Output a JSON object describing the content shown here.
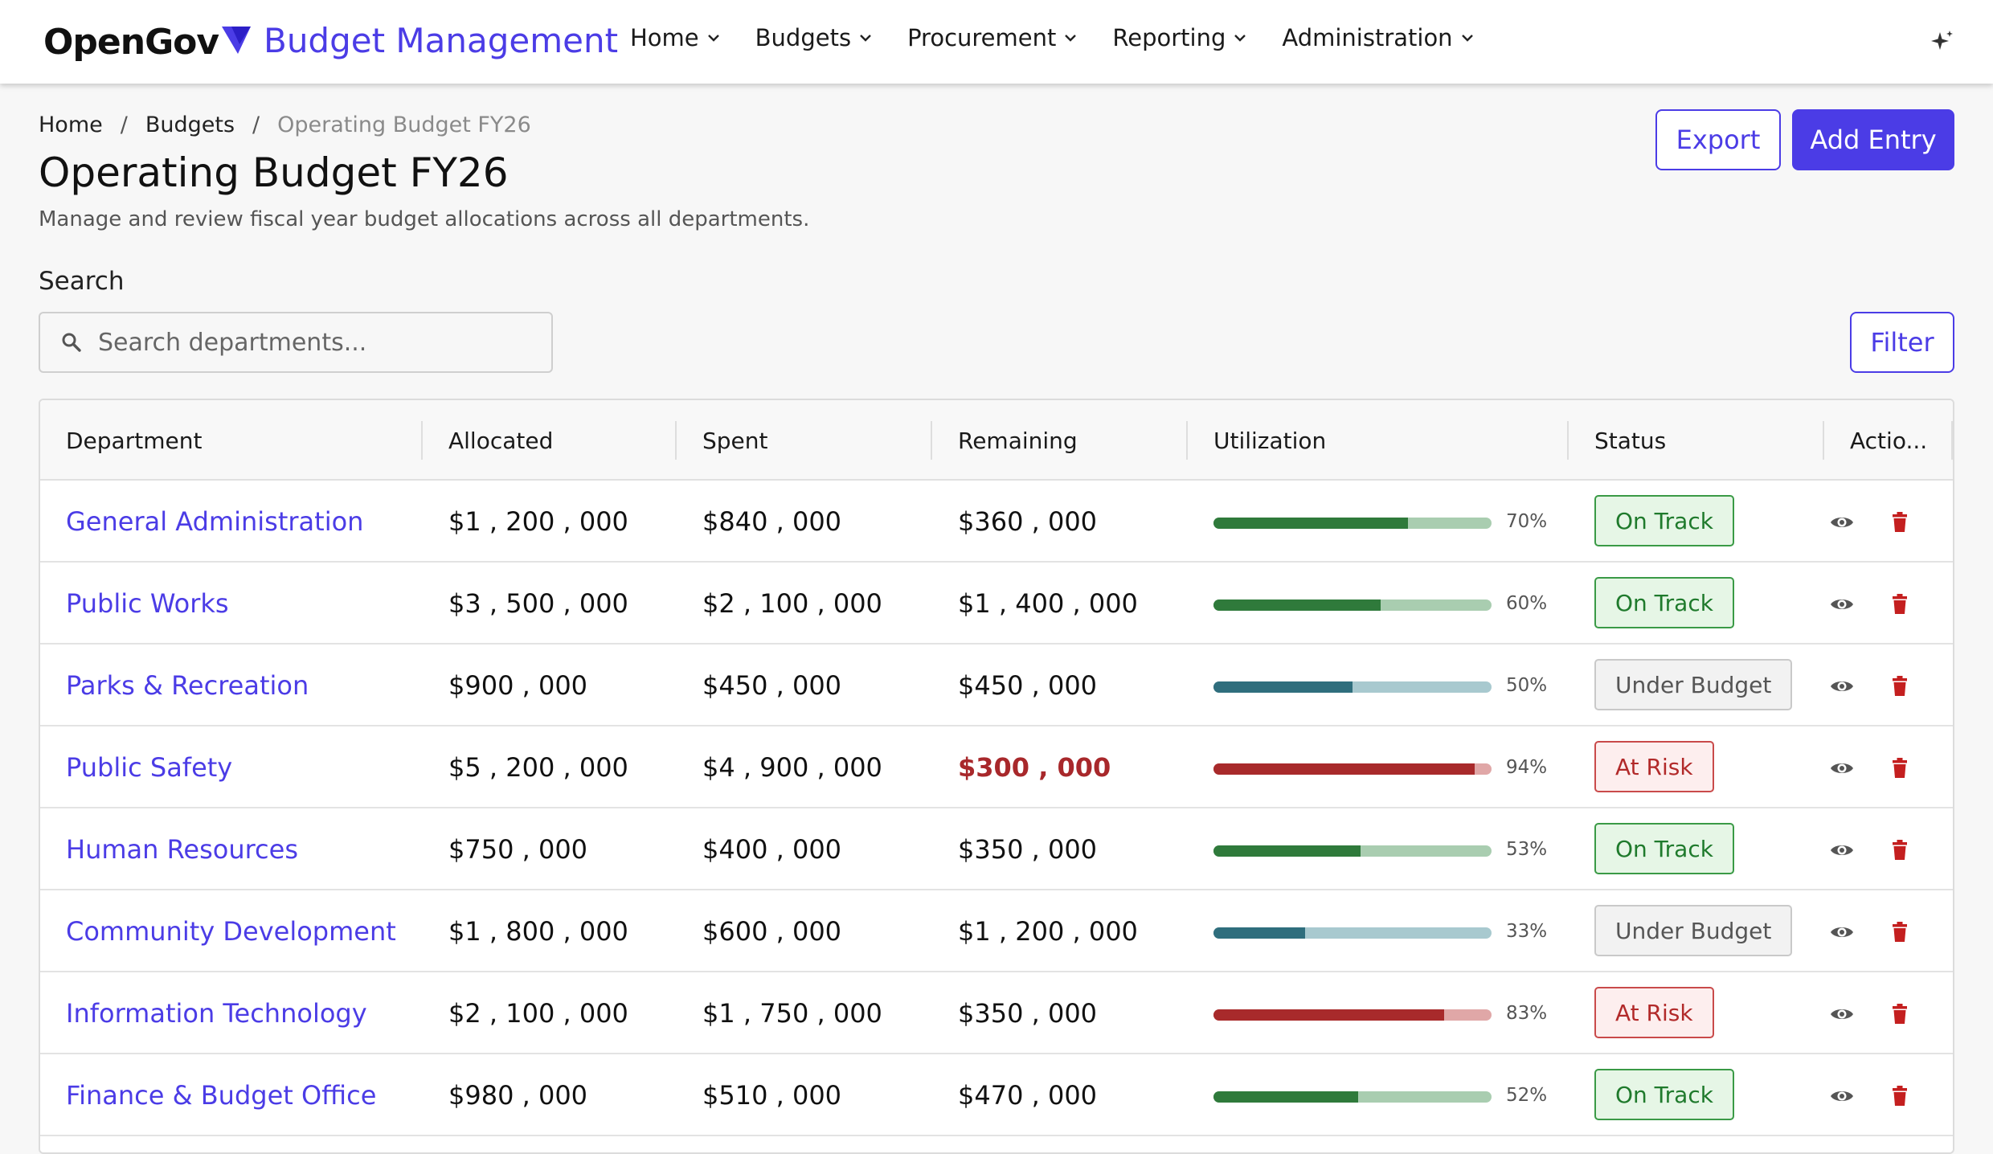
{
  "brand": {
    "logo_text": "OpenGov",
    "app_title": "Budget Management",
    "accent": "#4b3ce6"
  },
  "nav": {
    "items": [
      {
        "label": "Home"
      },
      {
        "label": "Budgets"
      },
      {
        "label": "Procurement"
      },
      {
        "label": "Reporting"
      },
      {
        "label": "Administration"
      }
    ],
    "right_icon": "sparkle-icon"
  },
  "breadcrumb": {
    "items": [
      "Home",
      "Budgets"
    ],
    "current": "Operating Budget FY26",
    "separator": "/"
  },
  "page": {
    "title": "Operating Budget FY26",
    "subtitle": "Manage and review fiscal year budget allocations across all departments."
  },
  "actions": {
    "export_label": "Export",
    "add_label": "Add Entry",
    "filter_label": "Filter"
  },
  "search": {
    "label": "Search",
    "placeholder": "Search departments...",
    "value": ""
  },
  "table": {
    "columns": [
      "Department",
      "Allocated",
      "Spent",
      "Remaining",
      "Utilization",
      "Status",
      "Actio..."
    ],
    "rows": [
      {
        "department": "General Administration",
        "allocated": "$1 , 200 , 000",
        "spent": "$840 , 000",
        "remaining": "$360 , 000",
        "utilization": 70,
        "utilization_label": "70%",
        "status": "On Track",
        "tone": "green",
        "remaining_risk": false
      },
      {
        "department": "Public Works",
        "allocated": "$3 , 500 , 000",
        "spent": "$2 , 100 , 000",
        "remaining": "$1 , 400 , 000",
        "utilization": 60,
        "utilization_label": "60%",
        "status": "On Track",
        "tone": "green",
        "remaining_risk": false
      },
      {
        "department": "Parks & Recreation",
        "allocated": "$900 , 000",
        "spent": "$450 , 000",
        "remaining": "$450 , 000",
        "utilization": 50,
        "utilization_label": "50%",
        "status": "Under Budget",
        "tone": "teal",
        "remaining_risk": false
      },
      {
        "department": "Public Safety",
        "allocated": "$5 , 200 , 000",
        "spent": "$4 , 900 , 000",
        "remaining": "$300 , 000",
        "utilization": 94,
        "utilization_label": "94%",
        "status": "At Risk",
        "tone": "red",
        "remaining_risk": true
      },
      {
        "department": "Human Resources",
        "allocated": "$750 , 000",
        "spent": "$400 , 000",
        "remaining": "$350 , 000",
        "utilization": 53,
        "utilization_label": "53%",
        "status": "On Track",
        "tone": "green",
        "remaining_risk": false
      },
      {
        "department": "Community Development",
        "allocated": "$1 , 800 , 000",
        "spent": "$600 , 000",
        "remaining": "$1 , 200 , 000",
        "utilization": 33,
        "utilization_label": "33%",
        "status": "Under Budget",
        "tone": "teal",
        "remaining_risk": false
      },
      {
        "department": "Information Technology",
        "allocated": "$2 , 100 , 000",
        "spent": "$1 , 750 , 000",
        "remaining": "$350 , 000",
        "utilization": 83,
        "utilization_label": "83%",
        "status": "At Risk",
        "tone": "red",
        "remaining_risk": false
      },
      {
        "department": "Finance & Budget Office",
        "allocated": "$980 , 000",
        "spent": "$510 , 000",
        "remaining": "$470 , 000",
        "utilization": 52,
        "utilization_label": "52%",
        "status": "On Track",
        "tone": "green",
        "remaining_risk": false
      }
    ],
    "row_action_icons": [
      "eye-icon",
      "trash-icon"
    ]
  },
  "colors": {
    "green_fill": "#2f7a3b",
    "green_track": "#a9cdb0",
    "teal_fill": "#2f6e7d",
    "teal_track": "#a8c9cf",
    "red_fill": "#a82a2b",
    "red_track": "#e0a7a7",
    "risk_text": "#a8282b",
    "trash": "#c41f1f"
  }
}
